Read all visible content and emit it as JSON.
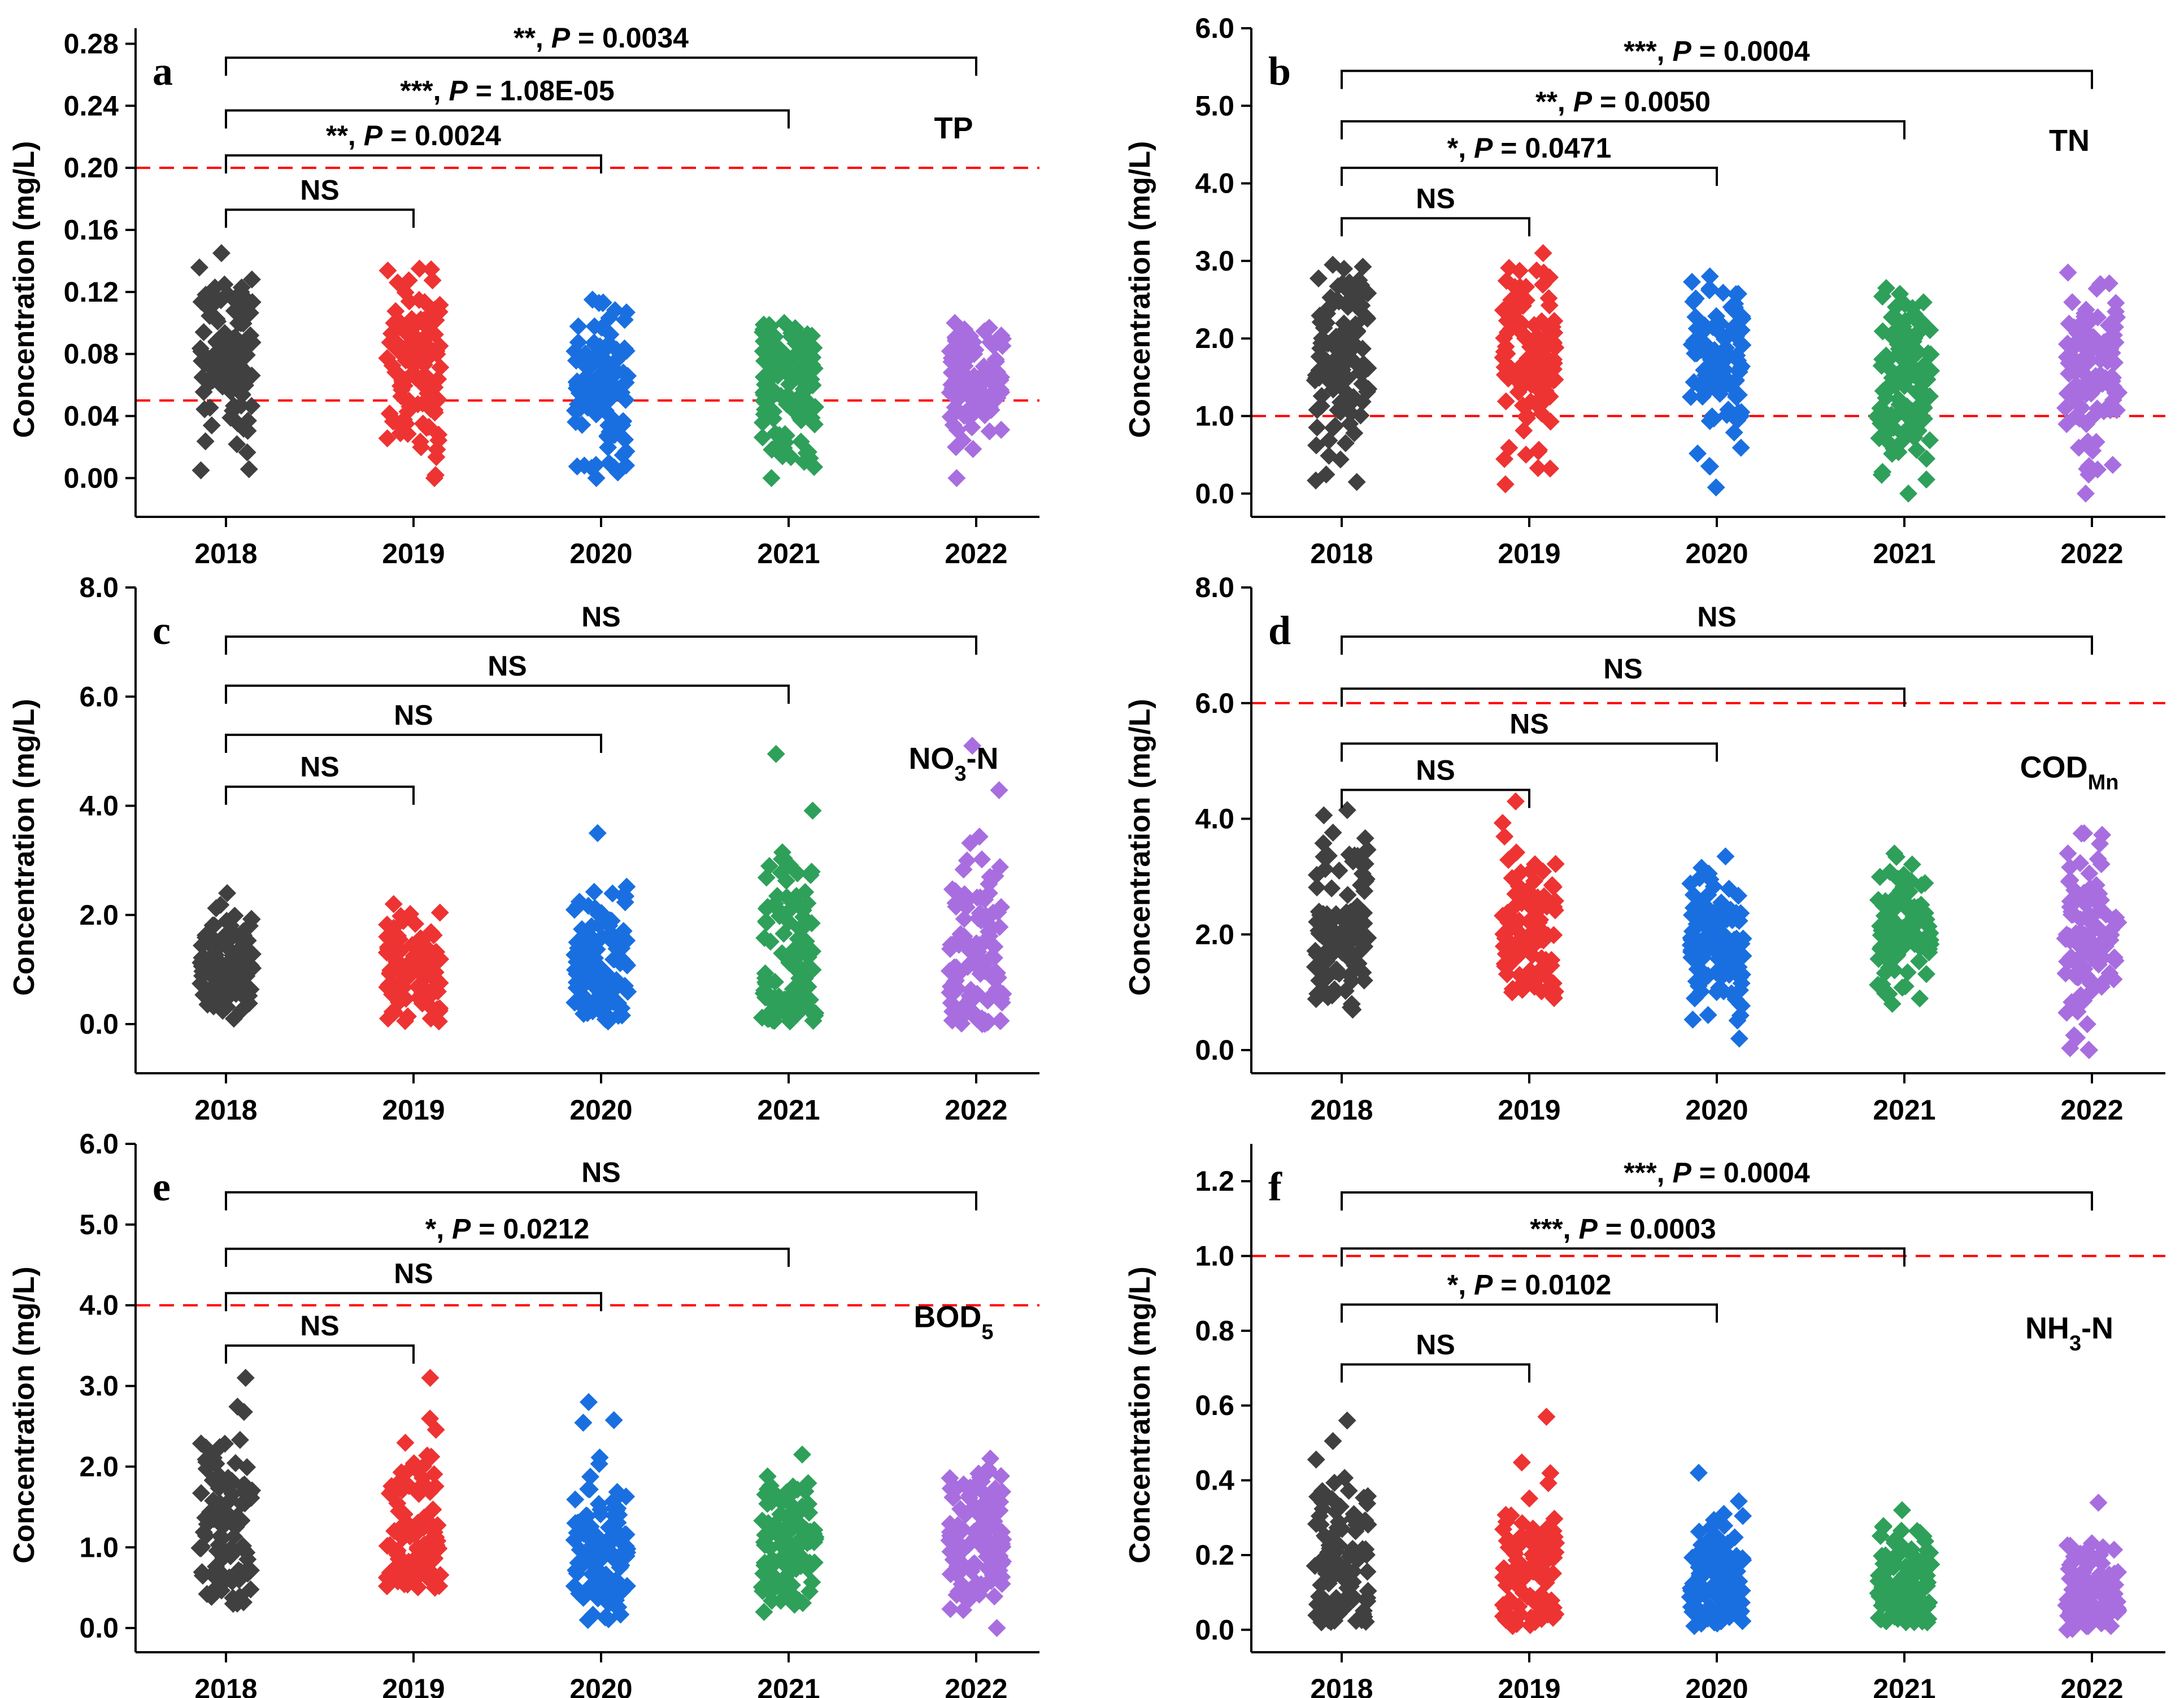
{
  "colors": {
    "2018": "#404040",
    "2019": "#ee3333",
    "2020": "#1a6fe0",
    "2021": "#2ea05a",
    "2022": "#a86ee0",
    "refline": "#ff0000"
  },
  "chart_data": [
    {
      "type": "scatter",
      "panel_label": "a",
      "variable": "TP",
      "variable_sub": "",
      "ylabel": "Concentration (mg/L)",
      "categories": [
        "2018",
        "2019",
        "2020",
        "2021",
        "2022"
      ],
      "ylim": [
        -0.025,
        0.29
      ],
      "yticks": [
        0.0,
        0.04,
        0.08,
        0.12,
        0.16,
        0.2,
        0.24,
        0.28
      ],
      "ytick_labels": [
        "0.00",
        "0.04",
        "0.08",
        "0.12",
        "0.16",
        "0.20",
        "0.24",
        "0.28"
      ],
      "reference_lines": [
        0.2,
        0.05
      ],
      "series": [
        {
          "name": "2018",
          "range": [
            0.005,
            0.145
          ],
          "center": 0.08,
          "n": 110
        },
        {
          "name": "2019",
          "range": [
            0.0,
            0.135
          ],
          "center": 0.07,
          "n": 110
        },
        {
          "name": "2020",
          "range": [
            0.0,
            0.115
          ],
          "center": 0.06,
          "n": 110
        },
        {
          "name": "2021",
          "range": [
            0.0,
            0.1
          ],
          "center": 0.06,
          "n": 110
        },
        {
          "name": "2022",
          "range": [
            0.0,
            0.1
          ],
          "center": 0.065,
          "n": 110
        }
      ],
      "comparisons": [
        {
          "label": "NS",
          "from": "2018",
          "to": "2019",
          "level": 0.173
        },
        {
          "label": "**, P = 0.0024",
          "from": "2018",
          "to": "2020",
          "level": 0.208
        },
        {
          "label": "***, P = 1.08E-05",
          "from": "2018",
          "to": "2021",
          "level": 0.237
        },
        {
          "label": "**, P = 0.0034",
          "from": "2018",
          "to": "2022",
          "level": 0.271
        }
      ]
    },
    {
      "type": "scatter",
      "panel_label": "b",
      "variable": "TN",
      "variable_sub": "",
      "ylabel": "Concentration (mg/L)",
      "categories": [
        "2018",
        "2019",
        "2020",
        "2021",
        "2022"
      ],
      "ylim": [
        -0.3,
        6.0
      ],
      "yticks": [
        0.0,
        1.0,
        2.0,
        3.0,
        4.0,
        5.0,
        6.0
      ],
      "ytick_labels": [
        "0.0",
        "1.0",
        "2.0",
        "3.0",
        "4.0",
        "5.0",
        "6.0"
      ],
      "reference_lines": [
        1.0
      ],
      "series": [
        {
          "name": "2018",
          "range": [
            0.15,
            2.95
          ],
          "center": 1.8,
          "n": 110
        },
        {
          "name": "2019",
          "range": [
            0.12,
            3.1
          ],
          "center": 1.7,
          "n": 110
        },
        {
          "name": "2020",
          "range": [
            0.08,
            2.8
          ],
          "center": 1.6,
          "n": 110
        },
        {
          "name": "2021",
          "range": [
            0.0,
            2.65
          ],
          "center": 1.5,
          "n": 110
        },
        {
          "name": "2022",
          "range": [
            0.0,
            2.85
          ],
          "center": 1.5,
          "n": 110
        }
      ],
      "comparisons": [
        {
          "label": "NS",
          "from": "2018",
          "to": "2019",
          "level": 3.55
        },
        {
          "label": "*, P = 0.0471",
          "from": "2018",
          "to": "2020",
          "level": 4.2
        },
        {
          "label": "**, P = 0.0050",
          "from": "2018",
          "to": "2021",
          "level": 4.8
        },
        {
          "label": "***, P = 0.0004",
          "from": "2018",
          "to": "2022",
          "level": 5.45
        }
      ]
    },
    {
      "type": "scatter",
      "panel_label": "c",
      "variable": "NO",
      "variable_sub": "3",
      "variable_suffix": "-N",
      "ylabel": "Concentration (mg/L)",
      "categories": [
        "2018",
        "2019",
        "2020",
        "2021",
        "2022"
      ],
      "ylim": [
        -0.9,
        8.0
      ],
      "yticks": [
        0.0,
        2.0,
        4.0,
        6.0,
        8.0
      ],
      "ytick_labels": [
        "0.0",
        "2.0",
        "4.0",
        "6.0",
        "8.0"
      ],
      "reference_lines": [],
      "series": [
        {
          "name": "2018",
          "range": [
            0.1,
            2.4
          ],
          "center": 1.1,
          "n": 110
        },
        {
          "name": "2019",
          "range": [
            0.05,
            2.2
          ],
          "center": 1.0,
          "n": 110
        },
        {
          "name": "2020",
          "range": [
            0.05,
            3.5
          ],
          "center": 1.1,
          "n": 110
        },
        {
          "name": "2021",
          "range": [
            0.05,
            4.95
          ],
          "center": 1.1,
          "n": 110
        },
        {
          "name": "2022",
          "range": [
            0.0,
            5.1
          ],
          "center": 1.2,
          "n": 110
        }
      ],
      "comparisons": [
        {
          "label": "NS",
          "from": "2018",
          "to": "2019",
          "level": 4.35
        },
        {
          "label": "NS",
          "from": "2018",
          "to": "2020",
          "level": 5.3
        },
        {
          "label": "NS",
          "from": "2018",
          "to": "2021",
          "level": 6.2
        },
        {
          "label": "NS",
          "from": "2018",
          "to": "2022",
          "level": 7.1
        }
      ]
    },
    {
      "type": "scatter",
      "panel_label": "d",
      "variable": "COD",
      "variable_sub": "Mn",
      "variable_suffix": "",
      "ylabel": "Concentration (mg/L)",
      "categories": [
        "2018",
        "2019",
        "2020",
        "2021",
        "2022"
      ],
      "ylim": [
        -0.4,
        8.0
      ],
      "yticks": [
        0.0,
        2.0,
        4.0,
        6.0,
        8.0
      ],
      "ytick_labels": [
        "0.0",
        "2.0",
        "4.0",
        "6.0",
        "8.0"
      ],
      "reference_lines": [
        6.0
      ],
      "series": [
        {
          "name": "2018",
          "range": [
            0.7,
            4.15
          ],
          "center": 2.1,
          "n": 110
        },
        {
          "name": "2019",
          "range": [
            0.9,
            4.3
          ],
          "center": 2.0,
          "n": 110
        },
        {
          "name": "2020",
          "range": [
            0.2,
            3.35
          ],
          "center": 1.8,
          "n": 110
        },
        {
          "name": "2021",
          "range": [
            0.8,
            3.4
          ],
          "center": 1.9,
          "n": 110
        },
        {
          "name": "2022",
          "range": [
            0.0,
            3.75
          ],
          "center": 2.0,
          "n": 110
        }
      ],
      "comparisons": [
        {
          "label": "NS",
          "from": "2018",
          "to": "2019",
          "level": 4.5
        },
        {
          "label": "NS",
          "from": "2018",
          "to": "2020",
          "level": 5.3
        },
        {
          "label": "NS",
          "from": "2018",
          "to": "2021",
          "level": 6.25
        },
        {
          "label": "NS",
          "from": "2018",
          "to": "2022",
          "level": 7.15
        }
      ]
    },
    {
      "type": "scatter",
      "panel_label": "e",
      "variable": "BOD",
      "variable_sub": "5",
      "variable_suffix": "",
      "ylabel": "Concentration (mg/L)",
      "categories": [
        "2018",
        "2019",
        "2020",
        "2021",
        "2022"
      ],
      "ylim": [
        -0.3,
        6.0
      ],
      "yticks": [
        0.0,
        1.0,
        2.0,
        3.0,
        4.0,
        5.0,
        6.0
      ],
      "ytick_labels": [
        "0.0",
        "1.0",
        "2.0",
        "3.0",
        "4.0",
        "5.0",
        "6.0"
      ],
      "reference_lines": [
        4.0
      ],
      "series": [
        {
          "name": "2018",
          "range": [
            0.3,
            3.1
          ],
          "center": 1.2,
          "n": 110
        },
        {
          "name": "2019",
          "range": [
            0.5,
            3.1
          ],
          "center": 1.1,
          "n": 110
        },
        {
          "name": "2020",
          "range": [
            0.1,
            2.8
          ],
          "center": 1.05,
          "n": 110
        },
        {
          "name": "2021",
          "range": [
            0.2,
            2.15
          ],
          "center": 1.1,
          "n": 110
        },
        {
          "name": "2022",
          "range": [
            0.0,
            2.1
          ],
          "center": 1.15,
          "n": 110
        }
      ],
      "comparisons": [
        {
          "label": "NS",
          "from": "2018",
          "to": "2019",
          "level": 3.5
        },
        {
          "label": "NS",
          "from": "2018",
          "to": "2020",
          "level": 4.15
        },
        {
          "label": "*, P = 0.0212",
          "from": "2018",
          "to": "2021",
          "level": 4.7
        },
        {
          "label": "NS",
          "from": "2018",
          "to": "2022",
          "level": 5.4
        }
      ]
    },
    {
      "type": "scatter",
      "panel_label": "f",
      "variable": "NH",
      "variable_sub": "3",
      "variable_suffix": "-N",
      "ylabel": "Concentration (mg/L)",
      "categories": [
        "2018",
        "2019",
        "2020",
        "2021",
        "2022"
      ],
      "ylim": [
        -0.06,
        1.3
      ],
      "yticks": [
        0.0,
        0.2,
        0.4,
        0.6,
        0.8,
        1.0,
        1.2
      ],
      "ytick_labels": [
        "0.0",
        "0.2",
        "0.4",
        "0.6",
        "0.8",
        "1.0",
        "1.2"
      ],
      "reference_lines": [
        1.0
      ],
      "series": [
        {
          "name": "2018",
          "range": [
            0.02,
            0.56
          ],
          "center": 0.16,
          "n": 110
        },
        {
          "name": "2019",
          "range": [
            0.01,
            0.57
          ],
          "center": 0.14,
          "n": 110
        },
        {
          "name": "2020",
          "range": [
            0.01,
            0.42
          ],
          "center": 0.12,
          "n": 110
        },
        {
          "name": "2021",
          "range": [
            0.02,
            0.32
          ],
          "center": 0.12,
          "n": 110
        },
        {
          "name": "2022",
          "range": [
            0.0,
            0.34
          ],
          "center": 0.1,
          "n": 110
        }
      ],
      "comparisons": [
        {
          "label": "NS",
          "from": "2018",
          "to": "2019",
          "level": 0.71
        },
        {
          "label": "*, P = 0.0102",
          "from": "2018",
          "to": "2020",
          "level": 0.87
        },
        {
          "label": "***, P = 0.0003",
          "from": "2018",
          "to": "2021",
          "level": 1.02
        },
        {
          "label": "***, P = 0.0004",
          "from": "2018",
          "to": "2022",
          "level": 1.17
        }
      ]
    }
  ]
}
